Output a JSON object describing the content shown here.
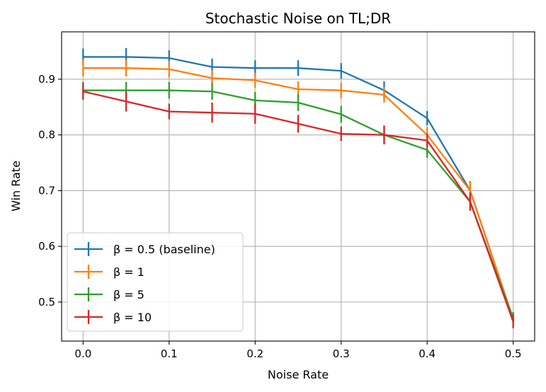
{
  "chart_data": {
    "type": "line",
    "title": "Stochastic Noise on TL;DR",
    "xlabel": "Noise Rate",
    "ylabel": "Win Rate",
    "xlim": [
      -0.025,
      0.525
    ],
    "ylim": [
      0.43,
      0.985
    ],
    "xticks": [
      0.0,
      0.1,
      0.2,
      0.3,
      0.4,
      0.5
    ],
    "xtick_labels": [
      "0.0",
      "0.1",
      "0.2",
      "0.3",
      "0.4",
      "0.5"
    ],
    "yticks": [
      0.5,
      0.6,
      0.7,
      0.8,
      0.9
    ],
    "ytick_labels": [
      "0.5",
      "0.6",
      "0.7",
      "0.8",
      "0.9"
    ],
    "grid": true,
    "legend_position": "lower-left",
    "x": [
      0.0,
      0.05,
      0.1,
      0.15,
      0.2,
      0.25,
      0.3,
      0.35,
      0.4,
      0.45,
      0.5
    ],
    "series": [
      {
        "name": "β = 0.5 (baseline)",
        "color": "#1f77b4",
        "values": [
          0.94,
          0.94,
          0.938,
          0.922,
          0.92,
          0.92,
          0.915,
          0.88,
          0.83,
          0.7,
          0.47
        ],
        "errors": [
          0.015,
          0.016,
          0.014,
          0.015,
          0.014,
          0.014,
          0.014,
          0.016,
          0.013,
          0.017,
          0.012
        ]
      },
      {
        "name": "β = 1",
        "color": "#ff7f0e",
        "values": [
          0.92,
          0.92,
          0.918,
          0.902,
          0.898,
          0.882,
          0.88,
          0.872,
          0.8,
          0.7,
          0.47
        ],
        "errors": [
          0.015,
          0.015,
          0.015,
          0.014,
          0.014,
          0.014,
          0.014,
          0.014,
          0.014,
          0.016,
          0.012
        ]
      },
      {
        "name": "β = 5",
        "color": "#2ca02c",
        "values": [
          0.88,
          0.88,
          0.88,
          0.878,
          0.862,
          0.858,
          0.837,
          0.8,
          0.773,
          0.68,
          0.47
        ],
        "errors": [
          0.015,
          0.015,
          0.015,
          0.015,
          0.015,
          0.015,
          0.015,
          0.015,
          0.014,
          0.016,
          0.012
        ]
      },
      {
        "name": "β = 10",
        "color": "#d62728",
        "values": [
          0.878,
          0.86,
          0.842,
          0.84,
          0.838,
          0.82,
          0.802,
          0.8,
          0.79,
          0.68,
          0.465
        ],
        "errors": [
          0.015,
          0.018,
          0.014,
          0.018,
          0.018,
          0.016,
          0.013,
          0.017,
          0.012,
          0.016,
          0.012
        ]
      }
    ]
  }
}
